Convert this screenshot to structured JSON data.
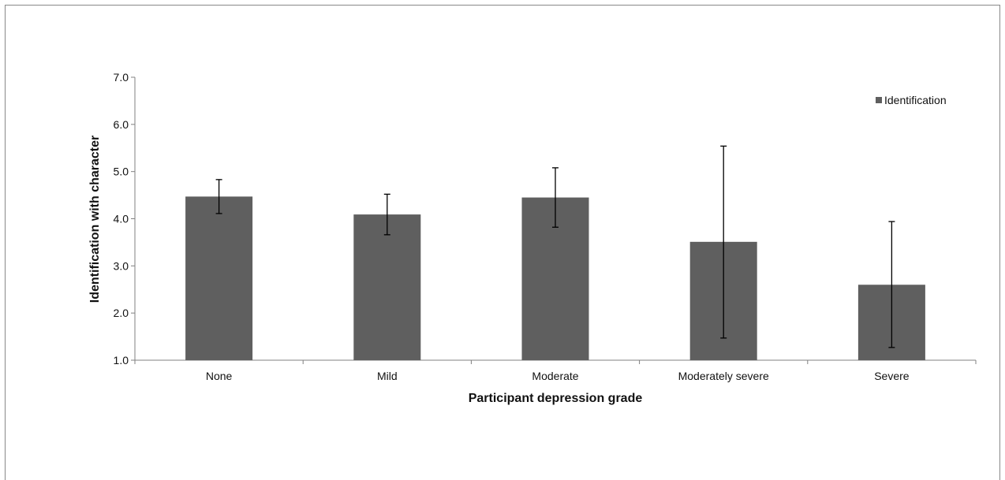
{
  "chart_data": {
    "type": "bar",
    "categories": [
      "None",
      "Mild",
      "Moderate",
      "Moderately severe",
      "Severe"
    ],
    "series": [
      {
        "name": "Identification",
        "values": [
          4.47,
          4.09,
          4.45,
          3.51,
          2.6
        ],
        "error_low": [
          4.11,
          3.66,
          3.82,
          1.47,
          1.27
        ],
        "error_high": [
          4.83,
          4.52,
          5.08,
          5.54,
          3.94
        ]
      }
    ],
    "xlabel": "Participant depression grade",
    "ylabel": "Identification with character",
    "ylim": [
      1.0,
      7.0
    ],
    "yticks": [
      "1.0",
      "2.0",
      "3.0",
      "4.0",
      "5.0",
      "6.0",
      "7.0"
    ],
    "grid": false,
    "legend_position": "top-right",
    "colors": {
      "bar": "#5f5f5f",
      "axis": "#808080",
      "error_bar": "#000000"
    }
  }
}
